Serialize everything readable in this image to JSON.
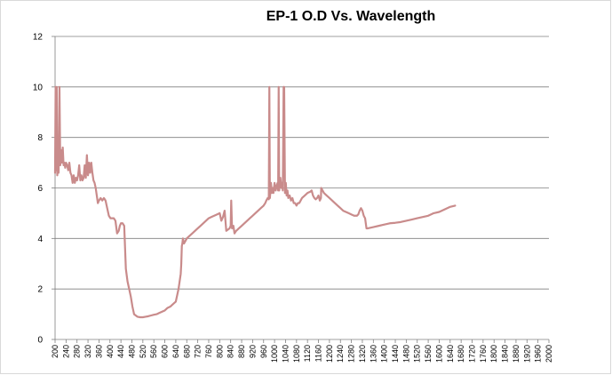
{
  "chart_data": {
    "type": "line",
    "title": "EP-1 O.D Vs. Wavelength",
    "xlabel": "",
    "ylabel": "",
    "xlim": [
      200,
      2000
    ],
    "ylim": [
      0,
      12
    ],
    "grid": true,
    "legend": "none",
    "y_ticks": [
      "0",
      "2",
      "4",
      "6",
      "8",
      "10",
      "12"
    ],
    "x_ticks": [
      "200",
      "240",
      "280",
      "320",
      "360",
      "400",
      "440",
      "480",
      "520",
      "560",
      "600",
      "640",
      "680",
      "720",
      "760",
      "800",
      "840",
      "880",
      "920",
      "960",
      "1000",
      "1040",
      "1080",
      "1120",
      "1160",
      "1200",
      "1240",
      "1280",
      "1320",
      "1360",
      "1400",
      "1440",
      "1480",
      "1520",
      "1560",
      "1600",
      "1640",
      "1680",
      "1720",
      "1760",
      "1800",
      "1840",
      "1880",
      "1920",
      "1960",
      "2000"
    ],
    "series": [
      {
        "name": "EP-1 O.D",
        "color": "#c98b8b",
        "points": [
          [
            200,
            6.6
          ],
          [
            202,
            10.0
          ],
          [
            204,
            6.7
          ],
          [
            206,
            10.0
          ],
          [
            208,
            6.5
          ],
          [
            210,
            7.0
          ],
          [
            213,
            6.6
          ],
          [
            216,
            10.0
          ],
          [
            219,
            6.9
          ],
          [
            222,
            7.5
          ],
          [
            225,
            7.0
          ],
          [
            228,
            7.6
          ],
          [
            231,
            6.9
          ],
          [
            234,
            7.0
          ],
          [
            237,
            6.8
          ],
          [
            240,
            7.0
          ],
          [
            244,
            6.9
          ],
          [
            248,
            6.7
          ],
          [
            252,
            7.0
          ],
          [
            256,
            6.6
          ],
          [
            260,
            6.5
          ],
          [
            264,
            6.2
          ],
          [
            268,
            6.5
          ],
          [
            272,
            6.2
          ],
          [
            276,
            6.4
          ],
          [
            280,
            6.3
          ],
          [
            284,
            6.5
          ],
          [
            288,
            6.9
          ],
          [
            292,
            6.3
          ],
          [
            296,
            6.5
          ],
          [
            300,
            6.3
          ],
          [
            304,
            6.4
          ],
          [
            308,
            6.9
          ],
          [
            312,
            6.4
          ],
          [
            316,
            7.3
          ],
          [
            320,
            6.5
          ],
          [
            324,
            7.0
          ],
          [
            328,
            6.6
          ],
          [
            332,
            7.0
          ],
          [
            336,
            6.6
          ],
          [
            340,
            6.3
          ],
          [
            344,
            6.2
          ],
          [
            348,
            6.0
          ],
          [
            352,
            5.7
          ],
          [
            356,
            5.4
          ],
          [
            360,
            5.5
          ],
          [
            366,
            5.6
          ],
          [
            372,
            5.5
          ],
          [
            378,
            5.6
          ],
          [
            384,
            5.5
          ],
          [
            390,
            5.2
          ],
          [
            396,
            4.9
          ],
          [
            402,
            4.8
          ],
          [
            408,
            4.8
          ],
          [
            414,
            4.8
          ],
          [
            420,
            4.7
          ],
          [
            426,
            4.2
          ],
          [
            432,
            4.3
          ],
          [
            436,
            4.5
          ],
          [
            440,
            4.6
          ],
          [
            446,
            4.6
          ],
          [
            452,
            4.5
          ],
          [
            458,
            2.8
          ],
          [
            464,
            2.3
          ],
          [
            470,
            2.0
          ],
          [
            476,
            1.7
          ],
          [
            482,
            1.3
          ],
          [
            488,
            1.0
          ],
          [
            494,
            0.95
          ],
          [
            500,
            0.9
          ],
          [
            510,
            0.88
          ],
          [
            520,
            0.88
          ],
          [
            530,
            0.9
          ],
          [
            540,
            0.92
          ],
          [
            550,
            0.95
          ],
          [
            560,
            0.98
          ],
          [
            570,
            1.0
          ],
          [
            580,
            1.05
          ],
          [
            590,
            1.1
          ],
          [
            600,
            1.15
          ],
          [
            610,
            1.25
          ],
          [
            620,
            1.3
          ],
          [
            630,
            1.4
          ],
          [
            640,
            1.5
          ],
          [
            646,
            1.8
          ],
          [
            650,
            2.0
          ],
          [
            654,
            2.3
          ],
          [
            658,
            2.6
          ],
          [
            660,
            3.0
          ],
          [
            662,
            3.7
          ],
          [
            664,
            3.8
          ],
          [
            666,
            4.0
          ],
          [
            670,
            3.8
          ],
          [
            675,
            3.9
          ],
          [
            680,
            4.0
          ],
          [
            690,
            4.1
          ],
          [
            700,
            4.2
          ],
          [
            710,
            4.3
          ],
          [
            720,
            4.4
          ],
          [
            730,
            4.5
          ],
          [
            740,
            4.6
          ],
          [
            750,
            4.7
          ],
          [
            760,
            4.8
          ],
          [
            770,
            4.85
          ],
          [
            780,
            4.9
          ],
          [
            790,
            4.95
          ],
          [
            800,
            5.0
          ],
          [
            806,
            4.7
          ],
          [
            812,
            4.85
          ],
          [
            818,
            5.1
          ],
          [
            824,
            4.3
          ],
          [
            830,
            4.35
          ],
          [
            836,
            4.4
          ],
          [
            840,
            4.5
          ],
          [
            842,
            5.5
          ],
          [
            845,
            4.4
          ],
          [
            850,
            4.5
          ],
          [
            854,
            4.2
          ],
          [
            860,
            4.3
          ],
          [
            870,
            4.4
          ],
          [
            880,
            4.5
          ],
          [
            890,
            4.6
          ],
          [
            900,
            4.7
          ],
          [
            910,
            4.8
          ],
          [
            920,
            4.9
          ],
          [
            930,
            5.0
          ],
          [
            940,
            5.1
          ],
          [
            950,
            5.2
          ],
          [
            960,
            5.3
          ],
          [
            966,
            5.4
          ],
          [
            970,
            5.5
          ],
          [
            975,
            5.6
          ],
          [
            979,
            5.55
          ],
          [
            981,
            10.0
          ],
          [
            983,
            5.6
          ],
          [
            987,
            6.2
          ],
          [
            990,
            5.8
          ],
          [
            993,
            6.0
          ],
          [
            996,
            5.8
          ],
          [
            1000,
            6.2
          ],
          [
            1004,
            5.9
          ],
          [
            1008,
            6.1
          ],
          [
            1011,
            6.2
          ],
          [
            1013,
            5.9
          ],
          [
            1015,
            10.0
          ],
          [
            1017,
            5.9
          ],
          [
            1021,
            6.4
          ],
          [
            1025,
            6.0
          ],
          [
            1028,
            6.2
          ],
          [
            1030,
            5.9
          ],
          [
            1033,
            10.0
          ],
          [
            1035,
            10.0
          ],
          [
            1038,
            5.8
          ],
          [
            1041,
            6.2
          ],
          [
            1044,
            5.7
          ],
          [
            1047,
            5.9
          ],
          [
            1050,
            5.6
          ],
          [
            1055,
            5.7
          ],
          [
            1060,
            5.5
          ],
          [
            1065,
            5.6
          ],
          [
            1070,
            5.4
          ],
          [
            1075,
            5.4
          ],
          [
            1080,
            5.3
          ],
          [
            1085,
            5.4
          ],
          [
            1090,
            5.4
          ],
          [
            1095,
            5.5
          ],
          [
            1100,
            5.6
          ],
          [
            1110,
            5.7
          ],
          [
            1120,
            5.8
          ],
          [
            1130,
            5.85
          ],
          [
            1135,
            5.9
          ],
          [
            1140,
            5.7
          ],
          [
            1145,
            5.6
          ],
          [
            1150,
            5.55
          ],
          [
            1155,
            5.6
          ],
          [
            1160,
            5.7
          ],
          [
            1165,
            5.5
          ],
          [
            1169,
            5.6
          ],
          [
            1170,
            6.0
          ],
          [
            1180,
            5.8
          ],
          [
            1190,
            5.7
          ],
          [
            1200,
            5.6
          ],
          [
            1210,
            5.5
          ],
          [
            1220,
            5.4
          ],
          [
            1230,
            5.3
          ],
          [
            1240,
            5.2
          ],
          [
            1250,
            5.1
          ],
          [
            1260,
            5.05
          ],
          [
            1270,
            5.0
          ],
          [
            1280,
            4.95
          ],
          [
            1290,
            4.9
          ],
          [
            1300,
            4.9
          ],
          [
            1305,
            4.95
          ],
          [
            1310,
            5.1
          ],
          [
            1315,
            5.2
          ],
          [
            1320,
            5.1
          ],
          [
            1325,
            4.9
          ],
          [
            1330,
            4.8
          ],
          [
            1335,
            4.4
          ],
          [
            1340,
            4.4
          ],
          [
            1360,
            4.45
          ],
          [
            1380,
            4.5
          ],
          [
            1400,
            4.55
          ],
          [
            1420,
            4.6
          ],
          [
            1440,
            4.62
          ],
          [
            1460,
            4.65
          ],
          [
            1480,
            4.7
          ],
          [
            1500,
            4.75
          ],
          [
            1520,
            4.8
          ],
          [
            1540,
            4.85
          ],
          [
            1560,
            4.9
          ],
          [
            1580,
            5.0
          ],
          [
            1600,
            5.05
          ],
          [
            1620,
            5.15
          ],
          [
            1640,
            5.25
          ],
          [
            1658,
            5.3
          ]
        ]
      }
    ]
  }
}
